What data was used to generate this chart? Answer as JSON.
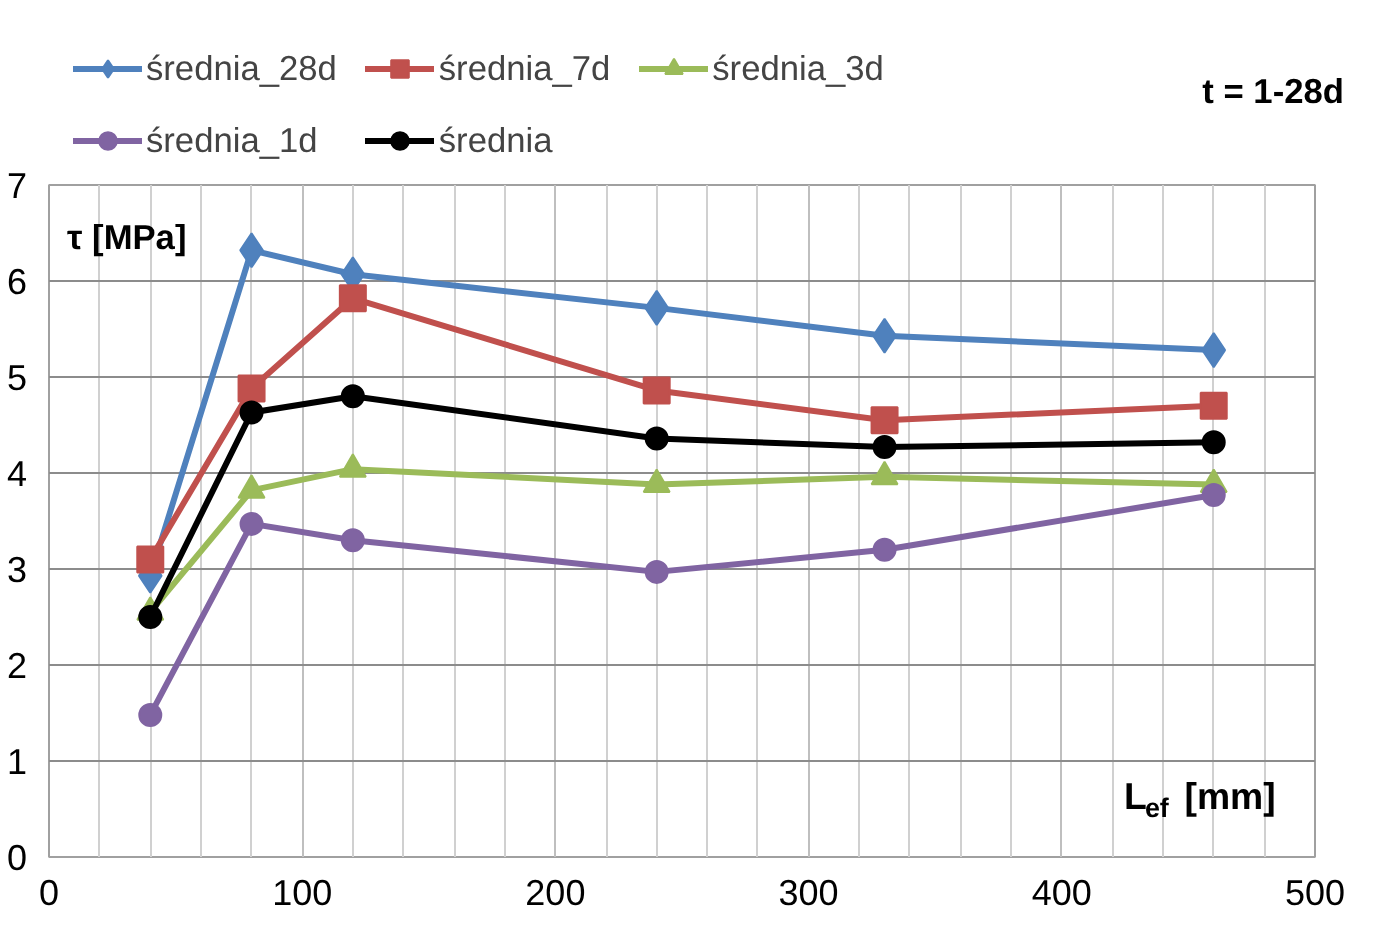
{
  "chart_data": {
    "type": "line",
    "annotations": [
      "t = 1-28d"
    ],
    "ylabel": "τ [MPa]",
    "xlabel": "L$_{ef}$ [mm]",
    "x": [
      40,
      80,
      120,
      240,
      330,
      460
    ],
    "series": [
      {
        "name": "średnia_28d",
        "color": "#4f81bd",
        "marker": "diamond",
        "values": [
          2.93,
          6.32,
          6.07,
          5.72,
          5.43,
          5.28
        ]
      },
      {
        "name": "średnia_7d",
        "color": "#c0504d",
        "marker": "square",
        "values": [
          3.1,
          4.88,
          5.82,
          4.86,
          4.55,
          4.7
        ]
      },
      {
        "name": "średnia_3d",
        "color": "#9bbb59",
        "marker": "triangle",
        "values": [
          2.55,
          3.82,
          4.04,
          3.88,
          3.96,
          3.88
        ]
      },
      {
        "name": "średnia_1d",
        "color": "#8064a2",
        "marker": "circle",
        "values": [
          1.48,
          3.47,
          3.3,
          2.97,
          3.2,
          3.77
        ]
      },
      {
        "name": "średnia",
        "color": "#000000",
        "marker": "circle",
        "values": [
          2.5,
          4.63,
          4.8,
          4.36,
          4.27,
          4.32
        ]
      }
    ],
    "xlim": [
      0,
      500
    ],
    "xticks": [
      0,
      100,
      200,
      300,
      400,
      500
    ],
    "ylim": [
      0,
      7
    ],
    "yticks": [
      0,
      1,
      2,
      3,
      4,
      5,
      6,
      7
    ],
    "grid": true,
    "legend": "top",
    "line_style": "solid"
  }
}
